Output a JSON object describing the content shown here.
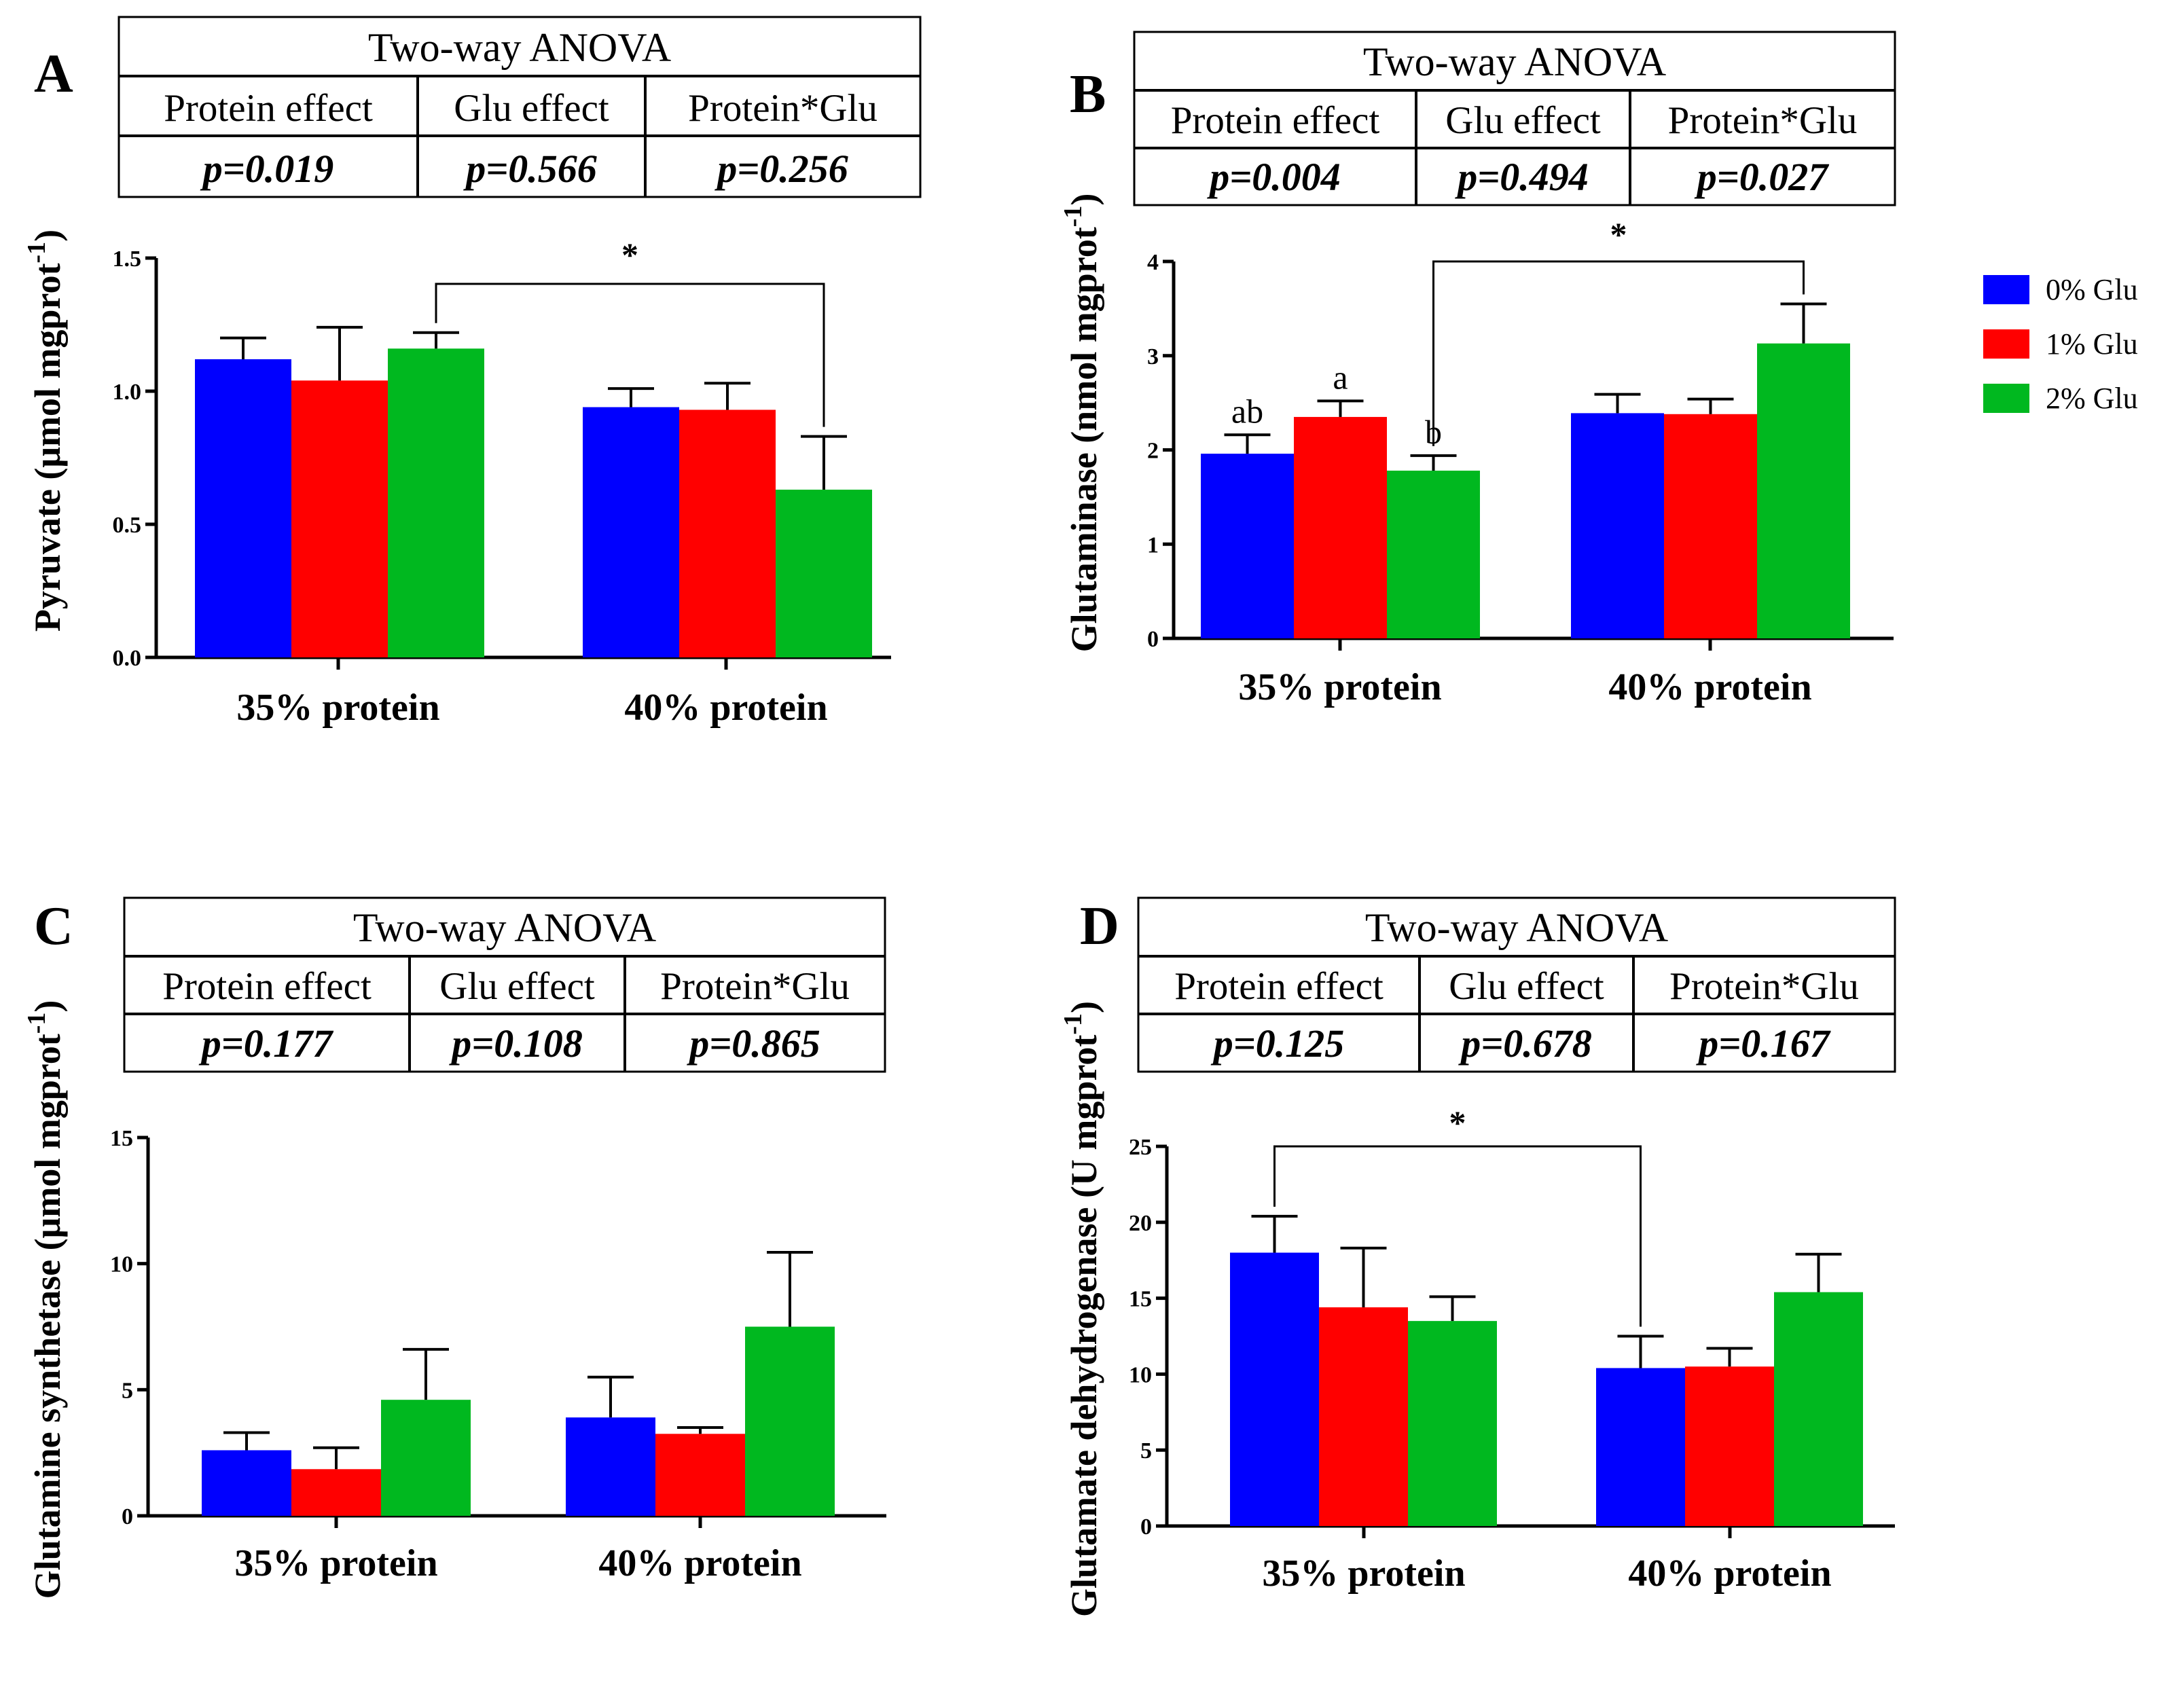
{
  "legend": [
    {
      "label": "0% Glu",
      "color": "#0000FF"
    },
    {
      "label": "1% Glu",
      "color": "#FF0000"
    },
    {
      "label": "2% Glu",
      "color": "#00B81F"
    }
  ],
  "chart_data": [
    {
      "panel": "A",
      "type": "bar",
      "anova": {
        "title": "Two-way ANOVA",
        "headers": [
          "Protein effect",
          "Glu effect",
          "Protein*Glu"
        ],
        "pvalues": [
          "0.019",
          "0.566",
          "0.256"
        ]
      },
      "categories": [
        "35% protein",
        "40% protein"
      ],
      "ylabel_main": "Pyruvate (μmol mgprot",
      "ylabel_sup": "-1",
      "ylabel_tail": ")",
      "ylim": [
        0,
        1.5
      ],
      "yticks": [
        "0.0",
        "0.5",
        "1.0",
        "1.5"
      ],
      "yticks_values": [
        0,
        0.5,
        1.0,
        1.5
      ],
      "series": [
        {
          "name": "0% Glu",
          "values": [
            1.12,
            0.94
          ],
          "errors": [
            0.08,
            0.07
          ]
        },
        {
          "name": "1% Glu",
          "values": [
            1.04,
            0.93
          ],
          "errors": [
            0.2,
            0.1
          ]
        },
        {
          "name": "2% Glu",
          "values": [
            1.16,
            0.63
          ],
          "errors": [
            0.06,
            0.2
          ]
        }
      ],
      "bar_letters": [],
      "significance": {
        "label": "*",
        "from": [
          0,
          2
        ],
        "to": [
          1,
          2
        ]
      }
    },
    {
      "panel": "B",
      "type": "bar",
      "anova": {
        "title": "Two-way ANOVA",
        "headers": [
          "Protein effect",
          "Glu effect",
          "Protein*Glu"
        ],
        "pvalues": [
          "0.004",
          "0.494",
          "0.027"
        ]
      },
      "categories": [
        "35% protein",
        "40% protein"
      ],
      "ylabel_main": "Glutaminase (nmol mgprot",
      "ylabel_sup": "-1",
      "ylabel_tail": ")",
      "ylim": [
        0,
        4
      ],
      "yticks": [
        "0",
        "1",
        "2",
        "3",
        "4"
      ],
      "yticks_values": [
        0,
        1,
        2,
        3,
        4
      ],
      "series": [
        {
          "name": "0% Glu",
          "values": [
            1.96,
            2.39
          ],
          "errors": [
            0.2,
            0.2
          ]
        },
        {
          "name": "1% Glu",
          "values": [
            2.35,
            2.38
          ],
          "errors": [
            0.17,
            0.16
          ]
        },
        {
          "name": "2% Glu",
          "values": [
            1.78,
            3.13
          ],
          "errors": [
            0.16,
            0.42
          ]
        }
      ],
      "bar_letters": [
        {
          "group": 0,
          "series": 0,
          "text": "ab"
        },
        {
          "group": 0,
          "series": 1,
          "text": "a"
        },
        {
          "group": 0,
          "series": 2,
          "text": "b"
        }
      ],
      "significance": {
        "label": "*",
        "from": [
          0,
          2
        ],
        "to": [
          1,
          2
        ]
      }
    },
    {
      "panel": "C",
      "type": "bar",
      "anova": {
        "title": "Two-way ANOVA",
        "headers": [
          "Protein effect",
          "Glu effect",
          "Protein*Glu"
        ],
        "pvalues": [
          "0.177",
          "0.108",
          "0.865"
        ]
      },
      "categories": [
        "35% protein",
        "40% protein"
      ],
      "ylabel_main": "Glutamine synthetase (μmol mgprot",
      "ylabel_sup": "-1",
      "ylabel_tail": ")",
      "ylim": [
        0,
        15
      ],
      "yticks": [
        "0",
        "5",
        "10",
        "15"
      ],
      "yticks_values": [
        0,
        5,
        10,
        15
      ],
      "series": [
        {
          "name": "0% Glu",
          "values": [
            2.6,
            3.9
          ],
          "errors": [
            0.7,
            1.6
          ]
        },
        {
          "name": "1% Glu",
          "values": [
            1.85,
            3.25
          ],
          "errors": [
            0.85,
            0.25
          ]
        },
        {
          "name": "2% Glu",
          "values": [
            4.6,
            7.5
          ],
          "errors": [
            2.0,
            2.95
          ]
        }
      ],
      "bar_letters": [],
      "significance": null
    },
    {
      "panel": "D",
      "type": "bar",
      "anova": {
        "title": "Two-way ANOVA",
        "headers": [
          "Protein effect",
          "Glu effect",
          "Protein*Glu"
        ],
        "pvalues": [
          "0.125",
          "0.678",
          "0.167"
        ]
      },
      "categories": [
        "35% protein",
        "40% protein"
      ],
      "ylabel_main": "Glutamate dehydrogenase (U mgprot",
      "ylabel_sup": "-1",
      "ylabel_tail": ")",
      "ylim": [
        0,
        25
      ],
      "yticks": [
        "0",
        "5",
        "10",
        "15",
        "20",
        "25"
      ],
      "yticks_values": [
        0,
        5,
        10,
        15,
        20,
        25
      ],
      "series": [
        {
          "name": "0% Glu",
          "values": [
            18.0,
            10.4
          ],
          "errors": [
            2.4,
            2.1
          ]
        },
        {
          "name": "1% Glu",
          "values": [
            14.4,
            10.5
          ],
          "errors": [
            3.9,
            1.2
          ]
        },
        {
          "name": "2% Glu",
          "values": [
            13.5,
            15.4
          ],
          "errors": [
            1.6,
            2.5
          ]
        }
      ],
      "bar_letters": [],
      "significance": {
        "label": "*",
        "from": [
          0,
          0
        ],
        "to": [
          1,
          0
        ]
      }
    }
  ]
}
